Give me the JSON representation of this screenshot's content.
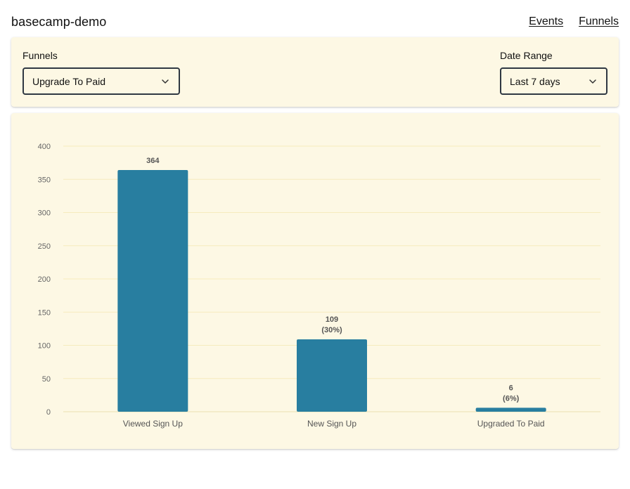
{
  "app": {
    "title": "basecamp-demo"
  },
  "nav": {
    "events": "Events",
    "funnels": "Funnels"
  },
  "filters": {
    "funnel_label": "Funnels",
    "funnel_value": "Upgrade To Paid",
    "date_label": "Date Range",
    "date_value": "Last 7 days"
  },
  "colors": {
    "bar": "#287ea0",
    "card_bg": "#fdf8e4",
    "grid": "#f6ebbd"
  },
  "icons": {
    "dropdown": "chevron-down-icon"
  },
  "chart_data": {
    "type": "bar",
    "categories": [
      "Viewed Sign Up",
      "New Sign Up",
      "Upgraded To Paid"
    ],
    "values": [
      364,
      109,
      6
    ],
    "data_labels": [
      [
        "364"
      ],
      [
        "109",
        "(30%)"
      ],
      [
        "6",
        "(6%)"
      ]
    ],
    "yticks": [
      "0",
      "50",
      "100",
      "150",
      "200",
      "250",
      "300",
      "350",
      "400"
    ],
    "ylim": [
      0,
      400
    ],
    "grid": true
  }
}
